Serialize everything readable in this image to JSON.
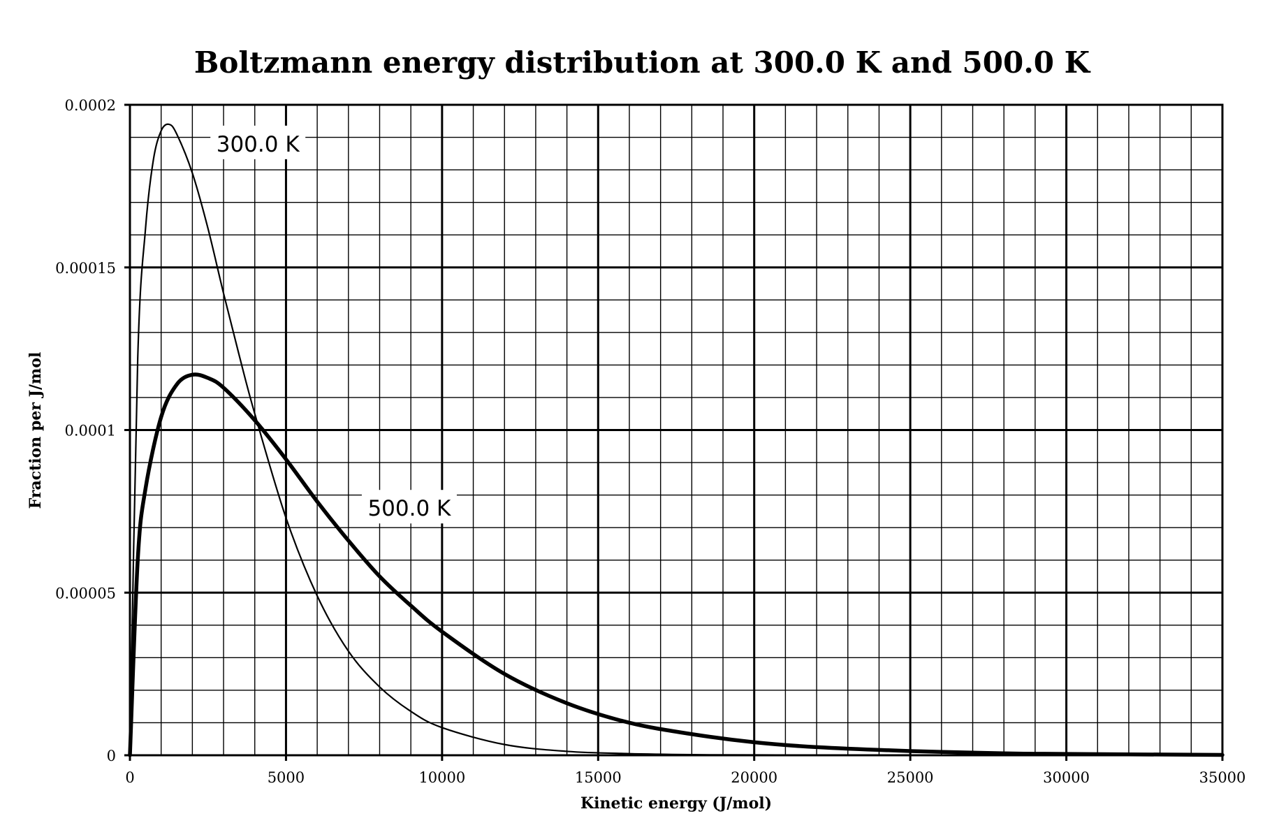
{
  "chart_data": {
    "type": "line",
    "title": "Boltzmann energy distribution at 300.0 K and 500.0 K",
    "xlabel": "Kinetic energy (J/mol)",
    "ylabel": "Fraction per J/mol",
    "xlim": [
      0,
      35000
    ],
    "ylim": [
      0,
      0.0002
    ],
    "x_ticks": [
      0,
      5000,
      10000,
      15000,
      20000,
      25000,
      30000,
      35000
    ],
    "x_tick_labels": [
      "0",
      "5000",
      "10000",
      "15000",
      "20000",
      "25000",
      "30000",
      "35000"
    ],
    "y_ticks": [
      0,
      5e-05,
      0.0001,
      0.00015,
      0.0002
    ],
    "y_tick_labels": [
      "0",
      "0.00005",
      "0.0001",
      "0.00015",
      "0.0002"
    ],
    "x_minor_step": 1000,
    "y_minor_step": 1e-05,
    "grid": true,
    "series": [
      {
        "name": "300.0 K",
        "label": "300.0 K",
        "line": "thin",
        "x": [
          0,
          250,
          500,
          750,
          1000,
          1250,
          1500,
          2000,
          2500,
          3000,
          3500,
          4000,
          5000,
          6000,
          7000,
          8000,
          9000,
          10000,
          12000,
          14000,
          16000,
          18000,
          20000,
          25000,
          30000,
          35000
        ],
        "y": [
          0,
          0.000122,
          0.000162,
          0.000183,
          0.000192,
          0.000194,
          0.000191,
          0.000179,
          0.000162,
          0.000142,
          0.000123,
          0.000105,
          7.3e-05,
          4.9e-05,
          3.2e-05,
          2.1e-05,
          1.35e-05,
          8.5e-06,
          3.3e-06,
          1.2e-06,
          5e-07,
          2e-07,
          1e-07,
          0,
          0,
          0
        ]
      },
      {
        "name": "500.0 K",
        "label": "500.0 K",
        "line": "thick",
        "x": [
          0,
          250,
          500,
          1000,
          1500,
          2000,
          2500,
          3000,
          4000,
          5000,
          6000,
          7000,
          8000,
          9000,
          10000,
          12000,
          14000,
          16000,
          18000,
          20000,
          22000,
          25000,
          28000,
          30000,
          35000
        ],
        "y": [
          0,
          6e-05,
          8.2e-05,
          0.000104,
          0.000114,
          0.000117,
          0.000116,
          0.000113,
          0.000103,
          9.1e-05,
          7.8e-05,
          6.6e-05,
          5.5e-05,
          4.6e-05,
          3.8e-05,
          2.5e-05,
          1.6e-05,
          1e-05,
          6.5e-06,
          4e-06,
          2.5e-06,
          1.3e-06,
          6e-07,
          4e-07,
          1e-07
        ]
      }
    ],
    "annotations": [
      {
        "text": "300.0 K",
        "x": 4100,
        "y": 0.000188,
        "series": "300.0 K"
      },
      {
        "text": "500.0 K",
        "x": 8950,
        "y": 7.6e-05,
        "series": "500.0 K"
      }
    ]
  }
}
